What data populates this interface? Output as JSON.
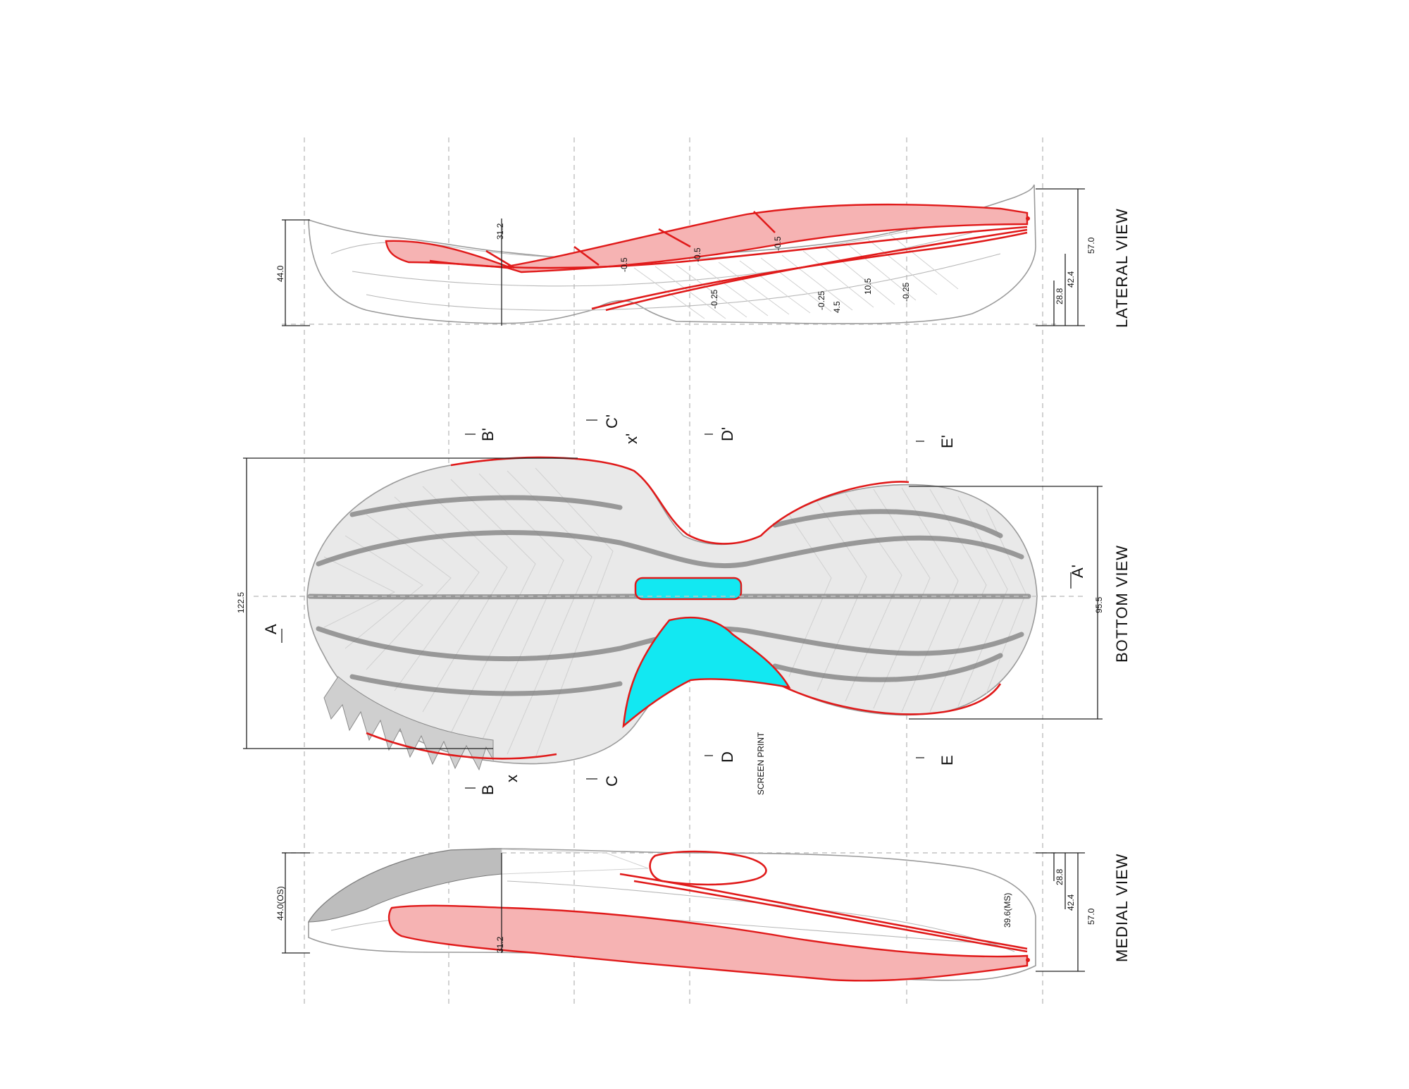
{
  "views": {
    "lateral": "LATERAL VIEW",
    "bottom": "BOTTOM VIEW",
    "medial": "MEDIAL VIEW"
  },
  "lateral_dims": {
    "height_44": "44.0",
    "forefoot_312": "31.2",
    "heel_570": "57.0",
    "heel_424": "42.4",
    "heel_288": "28.8",
    "offsets": [
      "-0.5",
      "-0.5",
      "-0.5",
      "-0.25",
      "-0.25",
      "4.5",
      "10.5",
      "-0.25"
    ]
  },
  "bottom_dims": {
    "length": "122.5",
    "width": "95.5"
  },
  "sections": {
    "A": "A",
    "A_prime": "A'",
    "B": "B",
    "B_prime": "B'",
    "C": "C",
    "C_prime": "C'",
    "D": "D",
    "D_prime": "D'",
    "E": "E",
    "E_prime": "E'",
    "X": "x",
    "X_prime": "x'"
  },
  "note": "SCREEN PRINT",
  "medial_dims": {
    "height_44": "44.0(OS)",
    "forefoot_312": "31.2",
    "ms": "39.6(MS)",
    "heel_570": "57.0",
    "heel_424": "42.4",
    "heel_288": "28.8"
  },
  "colors": {
    "outline_red": "#e01a1a",
    "fill_pink": "#f6b3b3",
    "cyan": "#12e8f2",
    "tread_gray": "#9a9a9a"
  }
}
